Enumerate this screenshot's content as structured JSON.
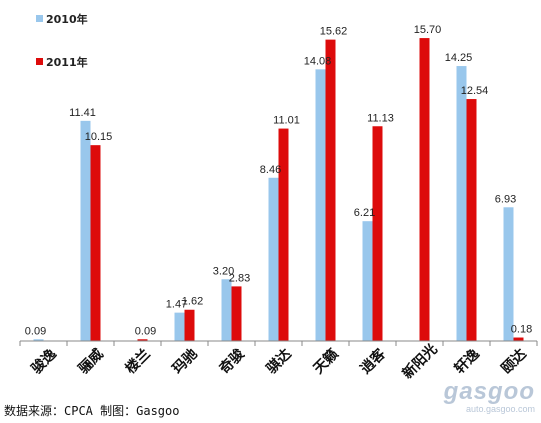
{
  "chart_data": {
    "type": "bar",
    "categories": [
      "骏逸",
      "骊威",
      "楼兰",
      "玛驰",
      "奇骏",
      "骐达",
      "天籁",
      "逍客",
      "新阳光",
      "轩逸",
      "颐达"
    ],
    "series": [
      {
        "name": "2010年",
        "color": "#99c7ec",
        "values": [
          0.09,
          11.41,
          null,
          1.47,
          3.2,
          8.46,
          14.08,
          6.21,
          null,
          14.25,
          6.93
        ]
      },
      {
        "name": "2011年",
        "color": "#dd0b0b",
        "values": [
          null,
          10.15,
          0.09,
          1.62,
          2.83,
          11.01,
          15.62,
          11.13,
          15.7,
          12.54,
          0.18
        ]
      }
    ],
    "labels": [
      [
        "0.09",
        "11.41",
        "",
        "1.47",
        "3.20",
        "8.46",
        "14.08",
        "6.21",
        "",
        "14.25",
        "6.93"
      ],
      [
        "",
        "10.15",
        "0.09",
        "1.62",
        "2.83",
        "11.01",
        "15.62",
        "11.13",
        "15.70",
        "12.54",
        "0.18"
      ]
    ],
    "ylim": [
      0,
      17
    ],
    "grid": false,
    "legend_position": "top-left"
  },
  "source_text": "数据来源：CPCA  制图：Gasgoo",
  "watermark": {
    "logo": "gasgoo",
    "url": "auto.gasgoo.com"
  }
}
